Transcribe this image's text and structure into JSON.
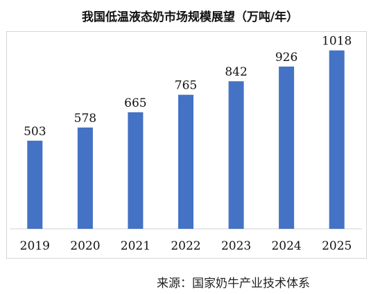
{
  "chart_data": {
    "type": "bar",
    "title": "我国低温液态奶市场规模展望（万吨/年）",
    "categories": [
      "2019",
      "2020",
      "2021",
      "2022",
      "2023",
      "2024",
      "2025"
    ],
    "values": [
      503,
      578,
      665,
      765,
      842,
      926,
      1018
    ],
    "xlabel": "",
    "ylabel": "",
    "ylim": [
      0,
      1100
    ],
    "grid": false,
    "legend": "none",
    "bar_color": "#4472C4"
  },
  "source": "来源：国家奶牛产业技术体系"
}
